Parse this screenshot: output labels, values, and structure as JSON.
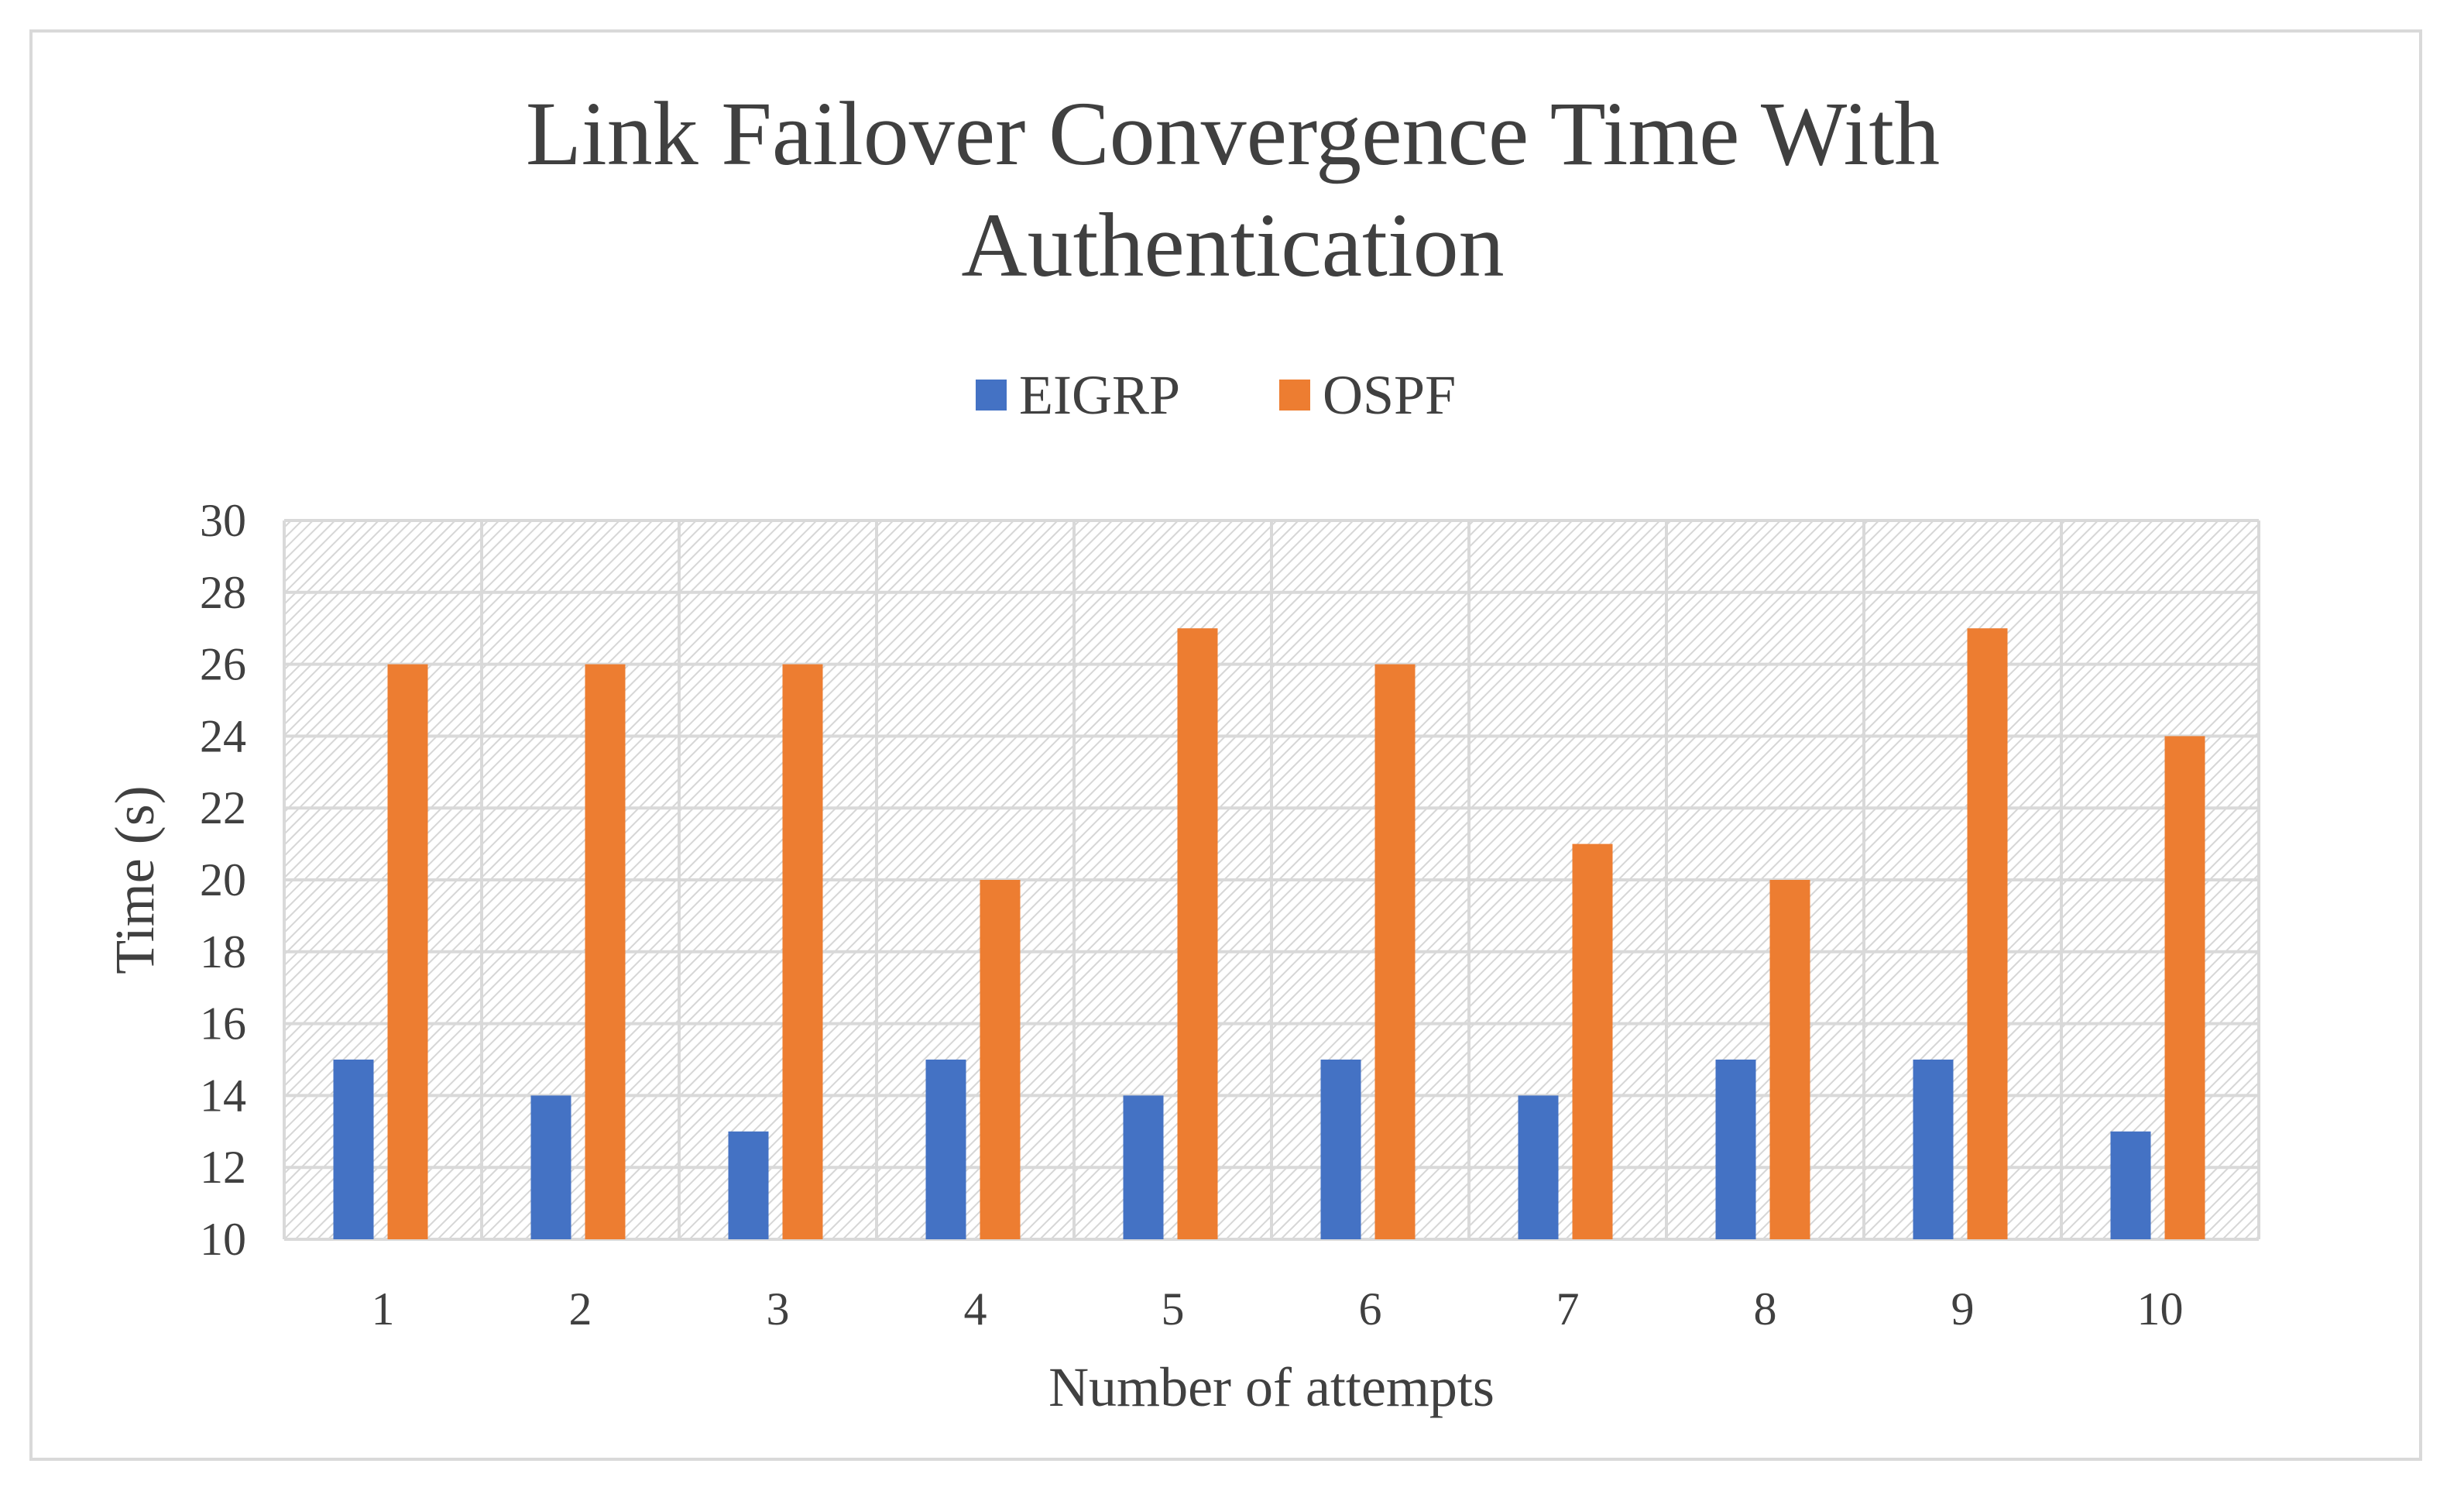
{
  "chart_data": {
    "type": "bar",
    "title_line1": "Link Failover Convergence Time With",
    "title_line2": "Authentication",
    "xlabel": "Number of attempts",
    "ylabel": "Time (s)",
    "categories": [
      "1",
      "2",
      "3",
      "4",
      "5",
      "6",
      "7",
      "8",
      "9",
      "10"
    ],
    "series": [
      {
        "name": "EIGRP",
        "color": "#4472c4",
        "values": [
          15,
          14,
          13,
          15,
          14,
          15,
          14,
          15,
          15,
          13
        ]
      },
      {
        "name": "OSPF",
        "color": "#ed7d31",
        "values": [
          26,
          26,
          26,
          20,
          27,
          26,
          21,
          20,
          27,
          24
        ]
      }
    ],
    "ylim": [
      10,
      30
    ],
    "yticks": [
      "10",
      "12",
      "14",
      "16",
      "18",
      "20",
      "22",
      "24",
      "26",
      "28",
      "30"
    ],
    "grid": true,
    "legend_position": "top-center",
    "plot_background": "hatched",
    "gridline_color": "#d9d9d9",
    "text_color": "#404040"
  }
}
